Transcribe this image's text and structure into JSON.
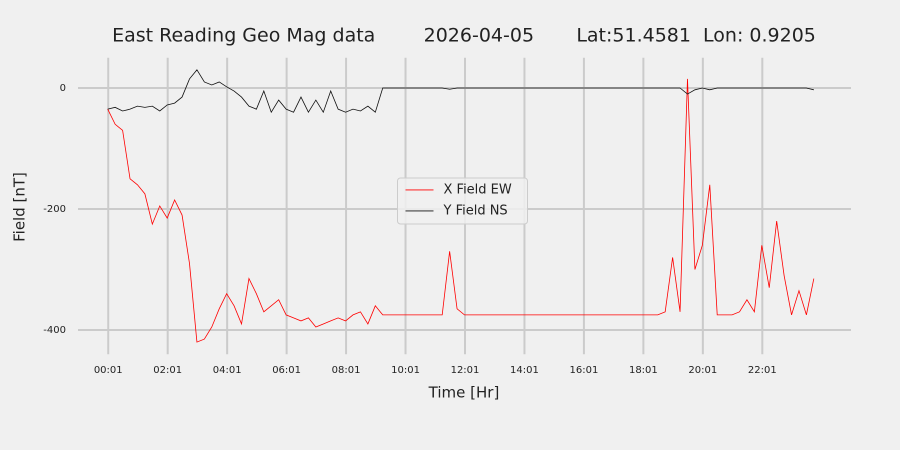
{
  "chart_data": {
    "type": "line",
    "title": "East Reading Geo Mag data        2026-04-05       Lat:51.4581  Lon: 0.9205",
    "x_label": "Time  [Hr]",
    "y_label": "Field  [nT]",
    "x": [
      0,
      0.25,
      0.5,
      0.75,
      1,
      1.25,
      1.5,
      1.75,
      2,
      2.25,
      2.5,
      2.75,
      3,
      3.25,
      3.5,
      3.75,
      4,
      4.25,
      4.5,
      4.75,
      5,
      5.25,
      5.5,
      5.75,
      6,
      6.25,
      6.5,
      6.75,
      7,
      7.25,
      7.5,
      7.75,
      8,
      8.25,
      8.5,
      8.75,
      9,
      9.25,
      9.5,
      9.75,
      10,
      10.25,
      10.5,
      10.75,
      11,
      11.25,
      11.5,
      11.75,
      12,
      12.25,
      12.5,
      12.75,
      13,
      13.25,
      13.5,
      13.75,
      14,
      14.25,
      14.5,
      14.75,
      15,
      15.25,
      15.5,
      15.75,
      16,
      16.25,
      16.5,
      16.75,
      17,
      17.25,
      17.5,
      17.75,
      18,
      18.25,
      18.5,
      18.75,
      19,
      19.25,
      19.5,
      19.75,
      20,
      20.25,
      20.5,
      20.75,
      21,
      21.25,
      21.5,
      21.75,
      22,
      22.25,
      22.5,
      22.75,
      23,
      23.25,
      23.5,
      23.75
    ],
    "series": [
      {
        "name": "X Field EW",
        "color": "#ff0000",
        "values": [
          -35,
          -60,
          -70,
          -150,
          -160,
          -175,
          -225,
          -195,
          -215,
          -185,
          -210,
          -290,
          -420,
          -415,
          -395,
          -365,
          -340,
          -360,
          -390,
          -315,
          -340,
          -370,
          -360,
          -350,
          -375,
          -380,
          -385,
          -380,
          -395,
          -390,
          -385,
          -380,
          -385,
          -375,
          -370,
          -390,
          -360,
          -375,
          -375,
          -375,
          -375,
          -375,
          -375,
          -375,
          -375,
          -375,
          -270,
          -365,
          -375,
          -375,
          -375,
          -375,
          -375,
          -375,
          -375,
          -375,
          -375,
          -375,
          -375,
          -375,
          -375,
          -375,
          -375,
          -375,
          -375,
          -375,
          -375,
          -375,
          -375,
          -375,
          -375,
          -375,
          -375,
          -375,
          -375,
          -370,
          -280,
          -370,
          15,
          -300,
          -260,
          -160,
          -375,
          -375,
          -375,
          -370,
          -350,
          -370,
          -260,
          -330,
          -220,
          -310,
          -375,
          -335,
          -375,
          -315
        ]
      },
      {
        "name": "Y Field NS",
        "color": "#111111",
        "values": [
          -35,
          -32,
          -38,
          -35,
          -30,
          -32,
          -30,
          -38,
          -28,
          -25,
          -15,
          15,
          30,
          10,
          5,
          10,
          2,
          -5,
          -15,
          -30,
          -35,
          -5,
          -40,
          -20,
          -35,
          -40,
          -15,
          -40,
          -20,
          -40,
          -5,
          -35,
          -40,
          -35,
          -38,
          -30,
          -40,
          0,
          0,
          0,
          0,
          0,
          0,
          0,
          0,
          0,
          -2,
          0,
          0,
          0,
          0,
          0,
          0,
          0,
          0,
          0,
          0,
          0,
          0,
          0,
          0,
          0,
          0,
          0,
          0,
          0,
          0,
          0,
          0,
          0,
          0,
          0,
          0,
          0,
          0,
          0,
          0,
          0,
          -10,
          -3,
          0,
          -3,
          0,
          0,
          0,
          0,
          0,
          0,
          0,
          0,
          0,
          0,
          0,
          0,
          0,
          -3
        ]
      }
    ],
    "xlim": [
      -1,
      25
    ],
    "ylim": [
      -440,
      50
    ],
    "xticks": [
      {
        "value": 0.0167,
        "label": "00:01"
      },
      {
        "value": 2.0167,
        "label": "02:01"
      },
      {
        "value": 4.0167,
        "label": "04:01"
      },
      {
        "value": 6.0167,
        "label": "06:01"
      },
      {
        "value": 8.0167,
        "label": "08:01"
      },
      {
        "value": 10.0167,
        "label": "10:01"
      },
      {
        "value": 12.0167,
        "label": "12:01"
      },
      {
        "value": 14.0167,
        "label": "14:01"
      },
      {
        "value": 16.0167,
        "label": "16:01"
      },
      {
        "value": 18.0167,
        "label": "18:01"
      },
      {
        "value": 20.0167,
        "label": "20:01"
      },
      {
        "value": 22.0167,
        "label": "22:01"
      }
    ],
    "yticks": [
      -400,
      -200,
      0
    ],
    "grid": true,
    "legend": "center"
  }
}
